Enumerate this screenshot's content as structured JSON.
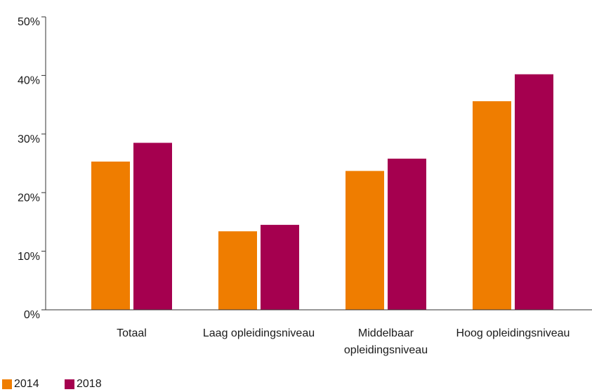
{
  "chart_data": {
    "type": "bar",
    "categories": [
      "Totaal",
      "Laag opleidingsniveau",
      "Middelbaar opleidingsniveau",
      "Hoog opleidingsniveau"
    ],
    "series": [
      {
        "name": "2014",
        "color": "#ef7d00",
        "values": [
          25.3,
          13.4,
          23.7,
          35.6
        ]
      },
      {
        "name": "2018",
        "color": "#a5004f",
        "values": [
          28.5,
          14.5,
          25.8,
          40.2
        ]
      }
    ],
    "ylim": [
      0,
      50
    ],
    "yticks": [
      {
        "value": 0,
        "label": "0%"
      },
      {
        "value": 10,
        "label": "10%"
      },
      {
        "value": 20,
        "label": "20%"
      },
      {
        "value": 30,
        "label": "30%"
      },
      {
        "value": 40,
        "label": "40%"
      },
      {
        "value": 50,
        "label": "50%"
      }
    ],
    "grid": false,
    "legend": "bottom-left"
  }
}
